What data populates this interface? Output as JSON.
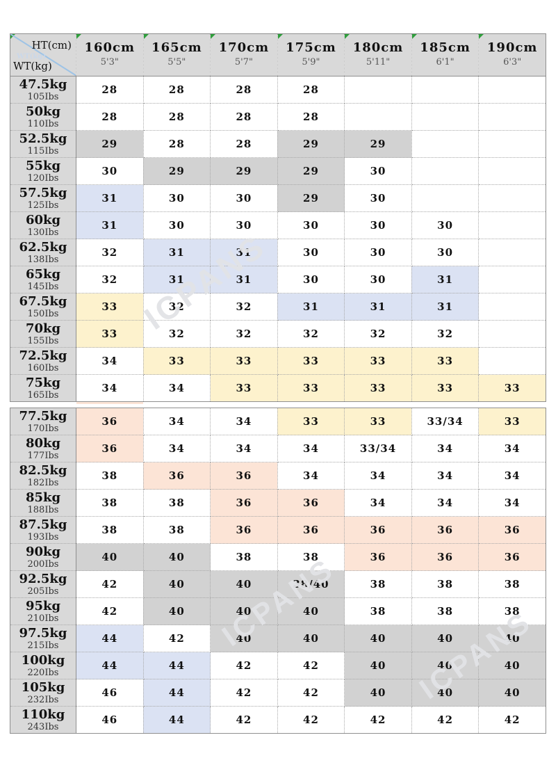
{
  "watermark": {
    "text": "ICPANS"
  },
  "colors": {
    "header_bg": "#d9d9d9",
    "label_bg": "#d9d9d9",
    "flag_green": "#2f9e3c",
    "diagonal_blue": "#9dc3e6",
    "white": "#ffffff",
    "gray": "#d2d2d2",
    "blue": "#dbe2f3",
    "yellow": "#fdf2cd",
    "pink": "#fce4d6"
  },
  "chart_data": {
    "type": "table",
    "title": "",
    "corner": {
      "top": "HT(cm)",
      "bottom": "WT(kg)",
      "ghost": "WT(kg)"
    },
    "palette_legend": {
      "w": "white",
      "g": "gray",
      "b": "blue",
      "y": "yellow",
      "p": "pink"
    },
    "columns": [
      {
        "cm": "160cm",
        "ft": "5'3\""
      },
      {
        "cm": "165cm",
        "ft": "5'5\""
      },
      {
        "cm": "170cm",
        "ft": "5'7\""
      },
      {
        "cm": "175cm",
        "ft": "5'9\""
      },
      {
        "cm": "180cm",
        "ft": "5'11\""
      },
      {
        "cm": "185cm",
        "ft": "6'1\""
      },
      {
        "cm": "190cm",
        "ft": "6'3\""
      }
    ],
    "seam_after_index": 11,
    "rows": [
      {
        "kg": "47.5kg",
        "lbs": "105Ibs",
        "cells": [
          {
            "v": "28",
            "c": "w"
          },
          {
            "v": "28",
            "c": "w"
          },
          {
            "v": "28",
            "c": "w"
          },
          {
            "v": "28",
            "c": "w"
          },
          {
            "v": "",
            "c": "w"
          },
          {
            "v": "",
            "c": "w"
          },
          {
            "v": "",
            "c": "w"
          }
        ]
      },
      {
        "kg": "50kg",
        "lbs": "110Ibs",
        "cells": [
          {
            "v": "28",
            "c": "w"
          },
          {
            "v": "28",
            "c": "w"
          },
          {
            "v": "28",
            "c": "w"
          },
          {
            "v": "28",
            "c": "w"
          },
          {
            "v": "",
            "c": "w"
          },
          {
            "v": "",
            "c": "w"
          },
          {
            "v": "",
            "c": "w"
          }
        ]
      },
      {
        "kg": "52.5kg",
        "lbs": "115Ibs",
        "cells": [
          {
            "v": "29",
            "c": "g"
          },
          {
            "v": "28",
            "c": "w"
          },
          {
            "v": "28",
            "c": "w"
          },
          {
            "v": "29",
            "c": "g"
          },
          {
            "v": "29",
            "c": "g"
          },
          {
            "v": "",
            "c": "w"
          },
          {
            "v": "",
            "c": "w"
          }
        ]
      },
      {
        "kg": "55kg",
        "lbs": "120Ibs",
        "cells": [
          {
            "v": "30",
            "c": "w"
          },
          {
            "v": "29",
            "c": "g"
          },
          {
            "v": "29",
            "c": "g"
          },
          {
            "v": "29",
            "c": "g"
          },
          {
            "v": "30",
            "c": "w"
          },
          {
            "v": "",
            "c": "w"
          },
          {
            "v": "",
            "c": "w"
          }
        ]
      },
      {
        "kg": "57.5kg",
        "lbs": "125Ibs",
        "cells": [
          {
            "v": "31",
            "c": "b"
          },
          {
            "v": "30",
            "c": "w"
          },
          {
            "v": "30",
            "c": "w"
          },
          {
            "v": "29",
            "c": "g"
          },
          {
            "v": "30",
            "c": "w"
          },
          {
            "v": "",
            "c": "w"
          },
          {
            "v": "",
            "c": "w"
          }
        ]
      },
      {
        "kg": "60kg",
        "lbs": "130Ibs",
        "cells": [
          {
            "v": "31",
            "c": "b"
          },
          {
            "v": "30",
            "c": "w"
          },
          {
            "v": "30",
            "c": "w"
          },
          {
            "v": "30",
            "c": "w"
          },
          {
            "v": "30",
            "c": "w"
          },
          {
            "v": "30",
            "c": "w"
          },
          {
            "v": "",
            "c": "w"
          }
        ]
      },
      {
        "kg": "62.5kg",
        "lbs": "138Ibs",
        "cells": [
          {
            "v": "32",
            "c": "w"
          },
          {
            "v": "31",
            "c": "b"
          },
          {
            "v": "31",
            "c": "b"
          },
          {
            "v": "30",
            "c": "w"
          },
          {
            "v": "30",
            "c": "w"
          },
          {
            "v": "30",
            "c": "w"
          },
          {
            "v": "",
            "c": "w"
          }
        ]
      },
      {
        "kg": "65kg",
        "lbs": "145Ibs",
        "cells": [
          {
            "v": "32",
            "c": "w"
          },
          {
            "v": "31",
            "c": "b"
          },
          {
            "v": "31",
            "c": "b"
          },
          {
            "v": "30",
            "c": "w"
          },
          {
            "v": "30",
            "c": "w"
          },
          {
            "v": "31",
            "c": "b"
          },
          {
            "v": "",
            "c": "w"
          }
        ]
      },
      {
        "kg": "67.5kg",
        "lbs": "150Ibs",
        "cells": [
          {
            "v": "33",
            "c": "y"
          },
          {
            "v": "32",
            "c": "w"
          },
          {
            "v": "32",
            "c": "w"
          },
          {
            "v": "31",
            "c": "b"
          },
          {
            "v": "31",
            "c": "b"
          },
          {
            "v": "31",
            "c": "b"
          },
          {
            "v": "",
            "c": "w"
          }
        ]
      },
      {
        "kg": "70kg",
        "lbs": "155Ibs",
        "cells": [
          {
            "v": "33",
            "c": "y"
          },
          {
            "v": "32",
            "c": "w"
          },
          {
            "v": "32",
            "c": "w"
          },
          {
            "v": "32",
            "c": "w"
          },
          {
            "v": "32",
            "c": "w"
          },
          {
            "v": "32",
            "c": "w"
          },
          {
            "v": "",
            "c": "w"
          }
        ]
      },
      {
        "kg": "72.5kg",
        "lbs": "160Ibs",
        "cells": [
          {
            "v": "34",
            "c": "w"
          },
          {
            "v": "33",
            "c": "y"
          },
          {
            "v": "33",
            "c": "y"
          },
          {
            "v": "33",
            "c": "y"
          },
          {
            "v": "33",
            "c": "y"
          },
          {
            "v": "33",
            "c": "y"
          },
          {
            "v": "",
            "c": "w"
          }
        ]
      },
      {
        "kg": "75kg",
        "lbs": "165Ibs",
        "cells": [
          {
            "v": "34",
            "c": "w"
          },
          {
            "v": "34",
            "c": "w"
          },
          {
            "v": "33",
            "c": "y"
          },
          {
            "v": "33",
            "c": "y"
          },
          {
            "v": "33",
            "c": "y"
          },
          {
            "v": "33",
            "c": "y"
          },
          {
            "v": "33",
            "c": "y"
          }
        ]
      },
      {
        "kg": "77.5kg",
        "lbs": "170Ibs",
        "cells": [
          {
            "v": "36",
            "c": "p"
          },
          {
            "v": "34",
            "c": "w"
          },
          {
            "v": "34",
            "c": "w"
          },
          {
            "v": "33",
            "c": "y"
          },
          {
            "v": "33",
            "c": "y"
          },
          {
            "v": "33/34",
            "c": "w"
          },
          {
            "v": "33",
            "c": "y"
          }
        ]
      },
      {
        "kg": "80kg",
        "lbs": "177Ibs",
        "cells": [
          {
            "v": "36",
            "c": "p"
          },
          {
            "v": "34",
            "c": "w"
          },
          {
            "v": "34",
            "c": "w"
          },
          {
            "v": "34",
            "c": "w"
          },
          {
            "v": "33/34",
            "c": "w"
          },
          {
            "v": "34",
            "c": "w"
          },
          {
            "v": "34",
            "c": "w"
          }
        ]
      },
      {
        "kg": "82.5kg",
        "lbs": "182Ibs",
        "cells": [
          {
            "v": "38",
            "c": "w"
          },
          {
            "v": "36",
            "c": "p"
          },
          {
            "v": "36",
            "c": "p"
          },
          {
            "v": "34",
            "c": "w"
          },
          {
            "v": "34",
            "c": "w"
          },
          {
            "v": "34",
            "c": "w"
          },
          {
            "v": "34",
            "c": "w"
          }
        ]
      },
      {
        "kg": "85kg",
        "lbs": "188Ibs",
        "cells": [
          {
            "v": "38",
            "c": "w"
          },
          {
            "v": "38",
            "c": "w"
          },
          {
            "v": "36",
            "c": "p"
          },
          {
            "v": "36",
            "c": "p"
          },
          {
            "v": "34",
            "c": "w"
          },
          {
            "v": "34",
            "c": "w"
          },
          {
            "v": "34",
            "c": "w"
          }
        ]
      },
      {
        "kg": "87.5kg",
        "lbs": "193Ibs",
        "cells": [
          {
            "v": "38",
            "c": "w"
          },
          {
            "v": "38",
            "c": "w"
          },
          {
            "v": "36",
            "c": "p"
          },
          {
            "v": "36",
            "c": "p"
          },
          {
            "v": "36",
            "c": "p"
          },
          {
            "v": "36",
            "c": "p"
          },
          {
            "v": "36",
            "c": "p"
          }
        ]
      },
      {
        "kg": "90kg",
        "lbs": "200Ibs",
        "cells": [
          {
            "v": "40",
            "c": "g"
          },
          {
            "v": "40",
            "c": "g"
          },
          {
            "v": "38",
            "c": "w"
          },
          {
            "v": "38",
            "c": "w"
          },
          {
            "v": "36",
            "c": "p"
          },
          {
            "v": "36",
            "c": "p"
          },
          {
            "v": "36",
            "c": "p"
          }
        ]
      },
      {
        "kg": "92.5kg",
        "lbs": "205Ibs",
        "cells": [
          {
            "v": "42",
            "c": "w"
          },
          {
            "v": "40",
            "c": "g"
          },
          {
            "v": "40",
            "c": "g"
          },
          {
            "v": "38/40",
            "c": "g"
          },
          {
            "v": "38",
            "c": "w"
          },
          {
            "v": "38",
            "c": "w"
          },
          {
            "v": "38",
            "c": "w"
          }
        ]
      },
      {
        "kg": "95kg",
        "lbs": "210Ibs",
        "cells": [
          {
            "v": "42",
            "c": "w"
          },
          {
            "v": "40",
            "c": "g"
          },
          {
            "v": "40",
            "c": "g"
          },
          {
            "v": "40",
            "c": "g"
          },
          {
            "v": "38",
            "c": "w"
          },
          {
            "v": "38",
            "c": "w"
          },
          {
            "v": "38",
            "c": "w"
          }
        ]
      },
      {
        "kg": "97.5kg",
        "lbs": "215Ibs",
        "cells": [
          {
            "v": "44",
            "c": "b"
          },
          {
            "v": "42",
            "c": "w"
          },
          {
            "v": "40",
            "c": "g"
          },
          {
            "v": "40",
            "c": "g"
          },
          {
            "v": "40",
            "c": "g"
          },
          {
            "v": "40",
            "c": "g"
          },
          {
            "v": "40",
            "c": "g"
          }
        ]
      },
      {
        "kg": "100kg",
        "lbs": "220Ibs",
        "cells": [
          {
            "v": "44",
            "c": "b"
          },
          {
            "v": "44",
            "c": "b"
          },
          {
            "v": "42",
            "c": "w"
          },
          {
            "v": "42",
            "c": "w"
          },
          {
            "v": "40",
            "c": "g"
          },
          {
            "v": "40",
            "c": "g"
          },
          {
            "v": "40",
            "c": "g"
          }
        ]
      },
      {
        "kg": "105kg",
        "lbs": "232Ibs",
        "cells": [
          {
            "v": "46",
            "c": "w"
          },
          {
            "v": "44",
            "c": "b"
          },
          {
            "v": "42",
            "c": "w"
          },
          {
            "v": "42",
            "c": "w"
          },
          {
            "v": "40",
            "c": "g"
          },
          {
            "v": "40",
            "c": "g"
          },
          {
            "v": "40",
            "c": "g"
          }
        ]
      },
      {
        "kg": "110kg",
        "lbs": "243Ibs",
        "cells": [
          {
            "v": "46",
            "c": "w"
          },
          {
            "v": "44",
            "c": "b"
          },
          {
            "v": "42",
            "c": "w"
          },
          {
            "v": "42",
            "c": "w"
          },
          {
            "v": "42",
            "c": "w"
          },
          {
            "v": "42",
            "c": "w"
          },
          {
            "v": "42",
            "c": "w"
          }
        ]
      }
    ]
  }
}
